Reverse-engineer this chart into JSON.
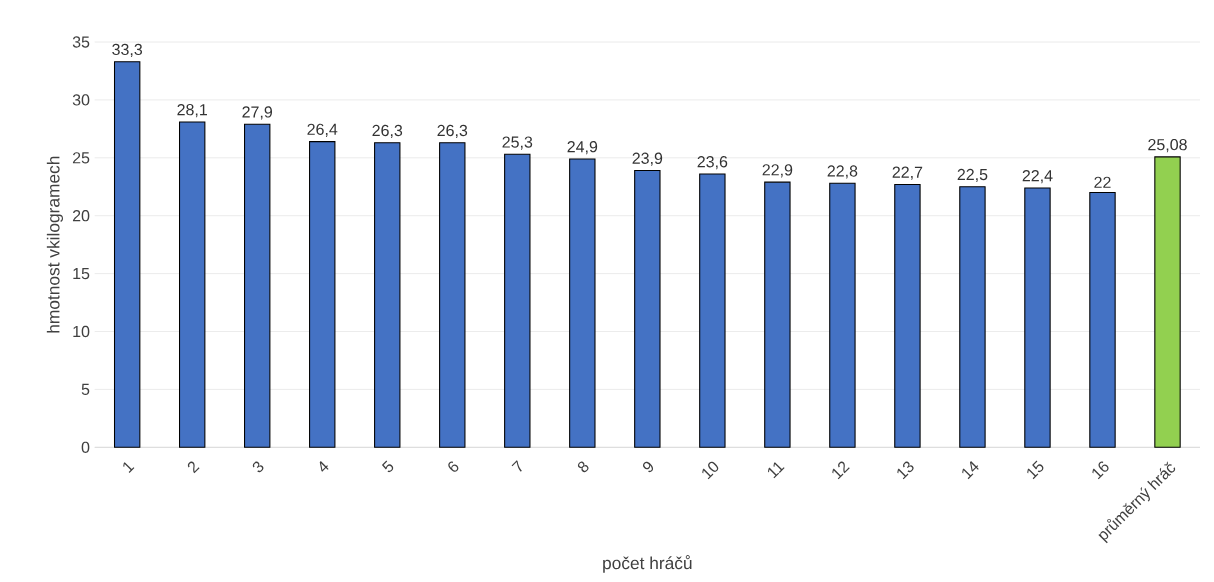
{
  "chart_data": {
    "type": "bar",
    "xlabel": "počet hráčů",
    "ylabel": "hmotnost vkilogramech",
    "categories": [
      "1",
      "2",
      "3",
      "4",
      "5",
      "6",
      "7",
      "8",
      "9",
      "10",
      "11",
      "12",
      "13",
      "14",
      "15",
      "16",
      "průměrný hráč"
    ],
    "values": [
      33.3,
      28.1,
      27.9,
      26.4,
      26.3,
      26.3,
      25.3,
      24.9,
      23.9,
      23.6,
      22.9,
      22.8,
      22.7,
      22.5,
      22.4,
      22,
      25.08
    ],
    "value_labels": [
      "33,3",
      "28,1",
      "27,9",
      "26,4",
      "26,3",
      "26,3",
      "25,3",
      "24,9",
      "23,9",
      "23,6",
      "22,9",
      "22,8",
      "22,7",
      "22,5",
      "22,4",
      "22",
      "25,08"
    ],
    "colors": [
      "#4472c4",
      "#4472c4",
      "#4472c4",
      "#4472c4",
      "#4472c4",
      "#4472c4",
      "#4472c4",
      "#4472c4",
      "#4472c4",
      "#4472c4",
      "#4472c4",
      "#4472c4",
      "#4472c4",
      "#4472c4",
      "#4472c4",
      "#4472c4",
      "#92d050"
    ],
    "ylim": [
      0,
      35
    ],
    "yticks": [
      0,
      5,
      10,
      15,
      20,
      25,
      30,
      35
    ],
    "grid": "y"
  }
}
